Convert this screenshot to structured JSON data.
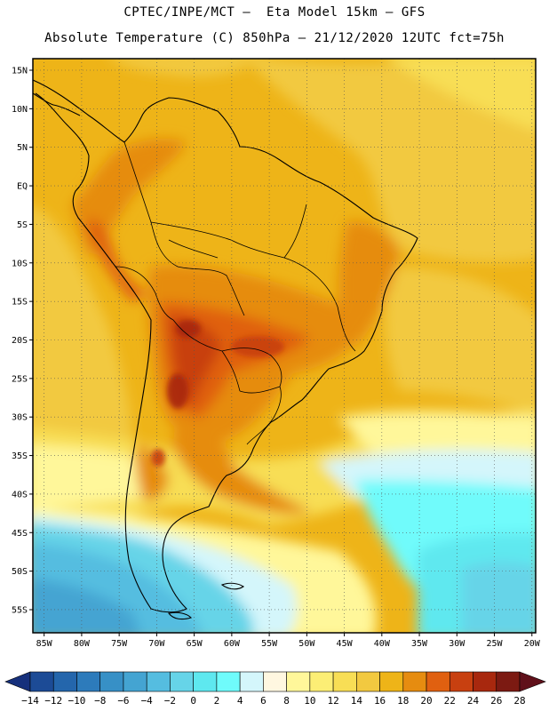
{
  "header": {
    "line1": "CPTEC/INPE/MCT –  Eta Model 15km – GFS",
    "line2": "Absolute Temperature (C) 850hPa – 21/12/2020 12UTC fct=75h"
  },
  "map": {
    "region": "South America",
    "lat_labels": [
      "15N",
      "10N",
      "5N",
      "EQ",
      "5S",
      "10S",
      "15S",
      "20S",
      "25S",
      "30S",
      "35S",
      "40S",
      "45S",
      "50S",
      "55S"
    ],
    "lat_values": [
      15,
      10,
      5,
      0,
      -5,
      -10,
      -15,
      -20,
      -25,
      -30,
      -35,
      -40,
      -45,
      -50,
      -55
    ],
    "lon_labels": [
      "85W",
      "80W",
      "75W",
      "70W",
      "65W",
      "60W",
      "55W",
      "50W",
      "45W",
      "40W",
      "35W",
      "30W",
      "25W",
      "20W"
    ],
    "lon_values": [
      -85,
      -80,
      -75,
      -70,
      -65,
      -60,
      -55,
      -50,
      -45,
      -40,
      -35,
      -30,
      -25,
      -20
    ],
    "lon_range": [
      -86.5,
      -19.5
    ],
    "lat_range": [
      -58,
      16.5
    ],
    "gridlines": "dotted"
  },
  "colorbar": {
    "labels": [
      "-14",
      "-12",
      "-10",
      "-8",
      "-6",
      "-4",
      "-2",
      "0",
      "2",
      "4",
      "6",
      "8",
      "10",
      "12",
      "14",
      "16",
      "18",
      "20",
      "22",
      "24",
      "26",
      "28"
    ],
    "colors": [
      "#16307c",
      "#1c4b96",
      "#2466ac",
      "#2d7bbb",
      "#3790c6",
      "#44a4d2",
      "#55bde0",
      "#66d4e8",
      "#5ee8ef",
      "#6ffbfb",
      "#d4f6fb",
      "#fff7e0",
      "#fff79a",
      "#fcee75",
      "#f8de55",
      "#f2c940",
      "#eeb418",
      "#e68c10",
      "#e06010",
      "#c84010",
      "#a8280e",
      "#7c1a12",
      "#60101a"
    ]
  }
}
